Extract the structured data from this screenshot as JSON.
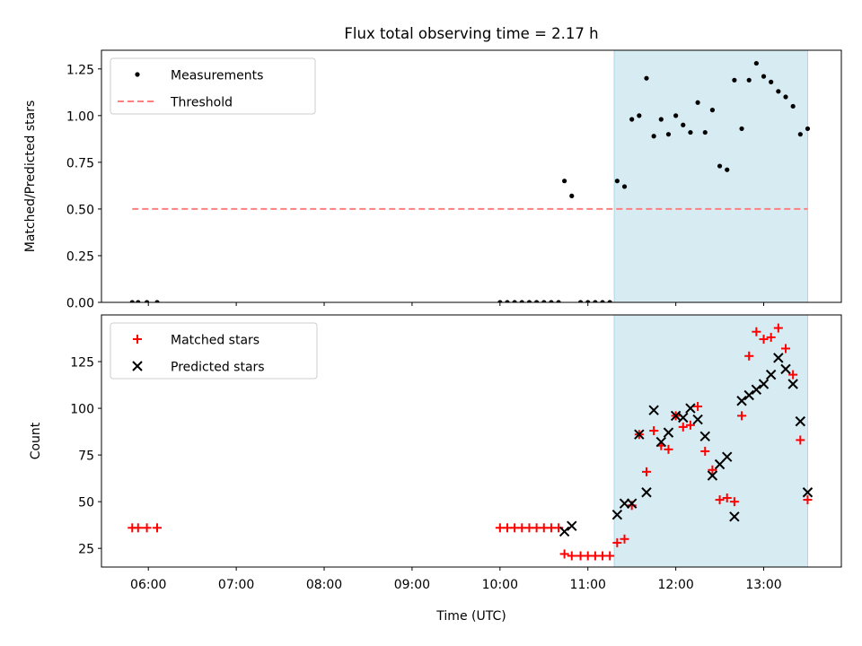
{
  "title": "Flux total observing time = 2.17 h",
  "colors": {
    "shade": "#add8e6",
    "measurement": "#000000",
    "threshold": "#ff7f7f",
    "matched": "#ff0000",
    "predicted": "#000000"
  },
  "chart_data": [
    {
      "type": "scatter",
      "ylabel": "Matched/Predicted stars",
      "xlim": [
        "05:28",
        "13:53"
      ],
      "ylim": [
        0,
        1.35
      ],
      "yticks": [
        0.0,
        0.25,
        0.5,
        0.75,
        1.0,
        1.25
      ],
      "ytick_labels": [
        "0.00",
        "0.25",
        "0.50",
        "0.75",
        "1.00",
        "1.25"
      ],
      "grid": false,
      "legend_position": "upper-left",
      "shaded_region": {
        "x_start": "11:18",
        "x_end": "13:30"
      },
      "series": [
        {
          "name": "Measurements",
          "marker": "dot",
          "points": [
            [
              "05:49",
              0.0
            ],
            [
              "05:53",
              0.0
            ],
            [
              "05:59",
              0.0
            ],
            [
              "06:06",
              0.0
            ],
            [
              "10:00",
              0.0
            ],
            [
              "10:05",
              0.0
            ],
            [
              "10:10",
              0.0
            ],
            [
              "10:15",
              0.0
            ],
            [
              "10:20",
              0.0
            ],
            [
              "10:25",
              0.0
            ],
            [
              "10:30",
              0.0
            ],
            [
              "10:35",
              0.0
            ],
            [
              "10:40",
              0.0
            ],
            [
              "10:44",
              0.65
            ],
            [
              "10:49",
              0.57
            ],
            [
              "10:55",
              0.0
            ],
            [
              "11:00",
              0.0
            ],
            [
              "11:05",
              0.0
            ],
            [
              "11:10",
              0.0
            ],
            [
              "11:15",
              0.0
            ],
            [
              "11:20",
              0.65
            ],
            [
              "11:25",
              0.62
            ],
            [
              "11:30",
              0.98
            ],
            [
              "11:35",
              1.0
            ],
            [
              "11:40",
              1.2
            ],
            [
              "11:45",
              0.89
            ],
            [
              "11:50",
              0.98
            ],
            [
              "11:55",
              0.9
            ],
            [
              "12:00",
              1.0
            ],
            [
              "12:05",
              0.95
            ],
            [
              "12:10",
              0.91
            ],
            [
              "12:15",
              1.07
            ],
            [
              "12:20",
              0.91
            ],
            [
              "12:25",
              1.03
            ],
            [
              "12:30",
              0.73
            ],
            [
              "12:35",
              0.71
            ],
            [
              "12:40",
              1.19
            ],
            [
              "12:45",
              0.93
            ],
            [
              "12:50",
              1.19
            ],
            [
              "12:55",
              1.28
            ],
            [
              "13:00",
              1.21
            ],
            [
              "13:05",
              1.18
            ],
            [
              "13:10",
              1.13
            ],
            [
              "13:15",
              1.1
            ],
            [
              "13:20",
              1.05
            ],
            [
              "13:25",
              0.9
            ],
            [
              "13:30",
              0.93
            ]
          ]
        },
        {
          "name": "Threshold",
          "marker": "dashed-line",
          "points": [
            [
              "05:49",
              0.5
            ],
            [
              "13:30",
              0.5
            ]
          ]
        }
      ]
    },
    {
      "type": "scatter",
      "xlabel": "Time (UTC)",
      "ylabel": "Count",
      "xlim": [
        "05:28",
        "13:53"
      ],
      "ylim": [
        15,
        150
      ],
      "xticks": [
        "06:00",
        "07:00",
        "08:00",
        "09:00",
        "10:00",
        "11:00",
        "12:00",
        "13:00"
      ],
      "yticks": [
        25,
        50,
        75,
        100,
        125
      ],
      "ytick_labels": [
        "25",
        "50",
        "75",
        "100",
        "125"
      ],
      "grid": false,
      "legend_position": "upper-left",
      "shaded_region": {
        "x_start": "11:18",
        "x_end": "13:30"
      },
      "series": [
        {
          "name": "Matched stars",
          "marker": "plus",
          "points": [
            [
              "05:49",
              36
            ],
            [
              "05:53",
              36
            ],
            [
              "05:59",
              36
            ],
            [
              "06:06",
              36
            ],
            [
              "10:00",
              36
            ],
            [
              "10:05",
              36
            ],
            [
              "10:10",
              36
            ],
            [
              "10:15",
              36
            ],
            [
              "10:20",
              36
            ],
            [
              "10:25",
              36
            ],
            [
              "10:30",
              36
            ],
            [
              "10:35",
              36
            ],
            [
              "10:40",
              36
            ],
            [
              "10:44",
              22
            ],
            [
              "10:49",
              21
            ],
            [
              "10:55",
              21
            ],
            [
              "11:00",
              21
            ],
            [
              "11:05",
              21
            ],
            [
              "11:10",
              21
            ],
            [
              "11:15",
              21
            ],
            [
              "11:20",
              28
            ],
            [
              "11:25",
              30
            ],
            [
              "11:30",
              48
            ],
            [
              "11:35",
              86
            ],
            [
              "11:40",
              66
            ],
            [
              "11:45",
              88
            ],
            [
              "11:50",
              80
            ],
            [
              "11:55",
              78
            ],
            [
              "12:00",
              96
            ],
            [
              "12:05",
              90
            ],
            [
              "12:10",
              91
            ],
            [
              "12:15",
              101
            ],
            [
              "12:20",
              77
            ],
            [
              "12:25",
              67
            ],
            [
              "12:30",
              51
            ],
            [
              "12:35",
              52
            ],
            [
              "12:40",
              50
            ],
            [
              "12:45",
              96
            ],
            [
              "12:50",
              128
            ],
            [
              "12:55",
              141
            ],
            [
              "13:00",
              137
            ],
            [
              "13:05",
              138
            ],
            [
              "13:10",
              143
            ],
            [
              "13:15",
              132
            ],
            [
              "13:20",
              118
            ],
            [
              "13:25",
              83
            ],
            [
              "13:30",
              51
            ]
          ]
        },
        {
          "name": "Predicted stars",
          "marker": "x",
          "points": [
            [
              "10:44",
              34
            ],
            [
              "10:49",
              37
            ],
            [
              "11:20",
              43
            ],
            [
              "11:25",
              49
            ],
            [
              "11:30",
              49
            ],
            [
              "11:35",
              86
            ],
            [
              "11:40",
              55
            ],
            [
              "11:45",
              99
            ],
            [
              "11:50",
              82
            ],
            [
              "11:55",
              87
            ],
            [
              "12:00",
              96
            ],
            [
              "12:05",
              95
            ],
            [
              "12:10",
              100
            ],
            [
              "12:15",
              94
            ],
            [
              "12:20",
              85
            ],
            [
              "12:25",
              64
            ],
            [
              "12:30",
              70
            ],
            [
              "12:35",
              74
            ],
            [
              "12:40",
              42
            ],
            [
              "12:45",
              104
            ],
            [
              "12:50",
              107
            ],
            [
              "12:55",
              110
            ],
            [
              "13:00",
              113
            ],
            [
              "13:05",
              118
            ],
            [
              "13:10",
              127
            ],
            [
              "13:15",
              121
            ],
            [
              "13:20",
              113
            ],
            [
              "13:25",
              93
            ],
            [
              "13:30",
              55
            ]
          ]
        }
      ]
    }
  ]
}
